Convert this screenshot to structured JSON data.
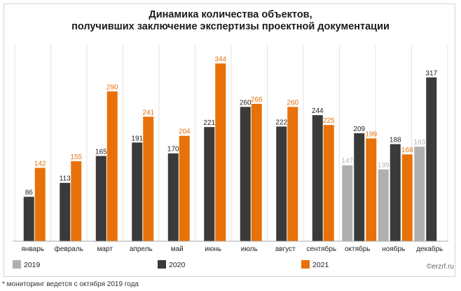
{
  "chart_data": {
    "type": "bar",
    "title_lines": [
      "Динамика количества объектов,",
      "получивших заключение экспертизы проектной документации"
    ],
    "categories": [
      "январь",
      "февраль",
      "март",
      "апрель",
      "май",
      "июнь",
      "июль",
      "август",
      "сентябрь",
      "октябрь",
      "ноябрь",
      "декабрь"
    ],
    "series": [
      {
        "name": "2019",
        "color": "#b0b0b0",
        "values": [
          null,
          null,
          null,
          null,
          null,
          null,
          null,
          null,
          null,
          147,
          139,
          183
        ]
      },
      {
        "name": "2020",
        "color": "#3a3a3a",
        "values": [
          86,
          113,
          165,
          191,
          170,
          221,
          260,
          222,
          244,
          209,
          188,
          317
        ]
      },
      {
        "name": "2021",
        "color": "#e8710a",
        "values": [
          142,
          155,
          290,
          241,
          204,
          344,
          266,
          260,
          225,
          199,
          168,
          null
        ]
      }
    ],
    "ylim": [
      0,
      380
    ],
    "legend_position": "bottom",
    "grid": false
  },
  "watermark": "©erzrf.ru",
  "footnote": "* мониторинг ведется с октября 2019 года"
}
